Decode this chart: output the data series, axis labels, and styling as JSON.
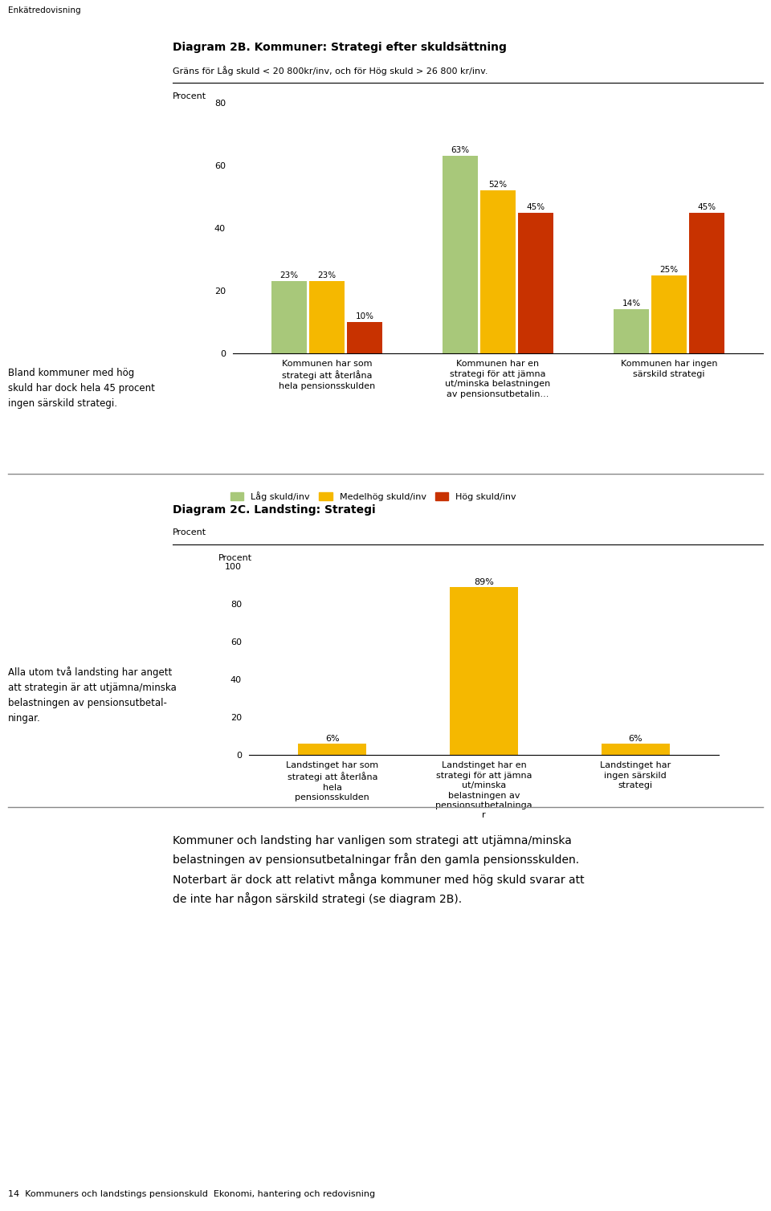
{
  "page_title": "Enkätredovisning",
  "chart1": {
    "title": "Diagram 2B. Kommuner: Strategi efter skuldsättning",
    "subtitle": "Gräns för Låg skuld < 20 800kr/inv, och för Hög skuld > 26 800 kr/inv.",
    "ylabel": "Procent",
    "ylim": [
      0,
      80
    ],
    "yticks": [
      0,
      20,
      40,
      60,
      80
    ],
    "categories": [
      "Kommunen har som\nstrategi att återlåna\nhela pensionsskulden",
      "Kommunen har en\nstrategi för att jämna\nut/minska belastningen\nav pensionsutbetalin...",
      "Kommunen har ingen\nsärskild strategi"
    ],
    "series": {
      "Låg skuld/inv": [
        23,
        63,
        14
      ],
      "Medelhög skuld/inv": [
        23,
        52,
        25
      ],
      "Hög skuld/inv": [
        10,
        45,
        45
      ]
    },
    "colors": {
      "Låg skuld/inv": "#a8c87a",
      "Medelhög skuld/inv": "#f5b800",
      "Hög skuld/inv": "#c83200"
    },
    "bar_width": 0.22,
    "side_text": "Bland kommuner med hög\nskuld har dock hela 45 procent\ningen särskild strategi."
  },
  "chart2": {
    "title": "Diagram 2C. Landsting: Strategi",
    "ylabel": "Procent",
    "ylim": [
      0,
      100
    ],
    "yticks": [
      0,
      20,
      40,
      60,
      80,
      100
    ],
    "categories": [
      "Landstinget har som\nstrategi att återlåna\nhela\npensionsskulden",
      "Landstinget har en\nstrategi för att jämna\nut/minska\nbelastningen av\npensionsutbetalninga\nr",
      "Landstinget har\ningen särskild\nstrategi"
    ],
    "values": [
      6,
      89,
      6
    ],
    "color": "#f5b800",
    "bar_width": 0.45,
    "side_text": "Alla utom två landsting har angett\natt strategin är att utjämna/minska\nbelastningen av pensionsutbetal-\nningar."
  },
  "bottom_text": "Kommuner och landsting har vanligen som strategi att utjämna/minska\nbelastningen av pensionsutbetalningar från den gamla pensionsskulden.\nNoterbart är dock att relativt många kommuner med hög skuld svarar att\nde inte har någon särskild strategi (se diagram 2B).",
  "footer_text": "14  Kommuners och landstings pensionskuld  Ekonomi, hantering och redovisning",
  "background_color": "#ffffff"
}
